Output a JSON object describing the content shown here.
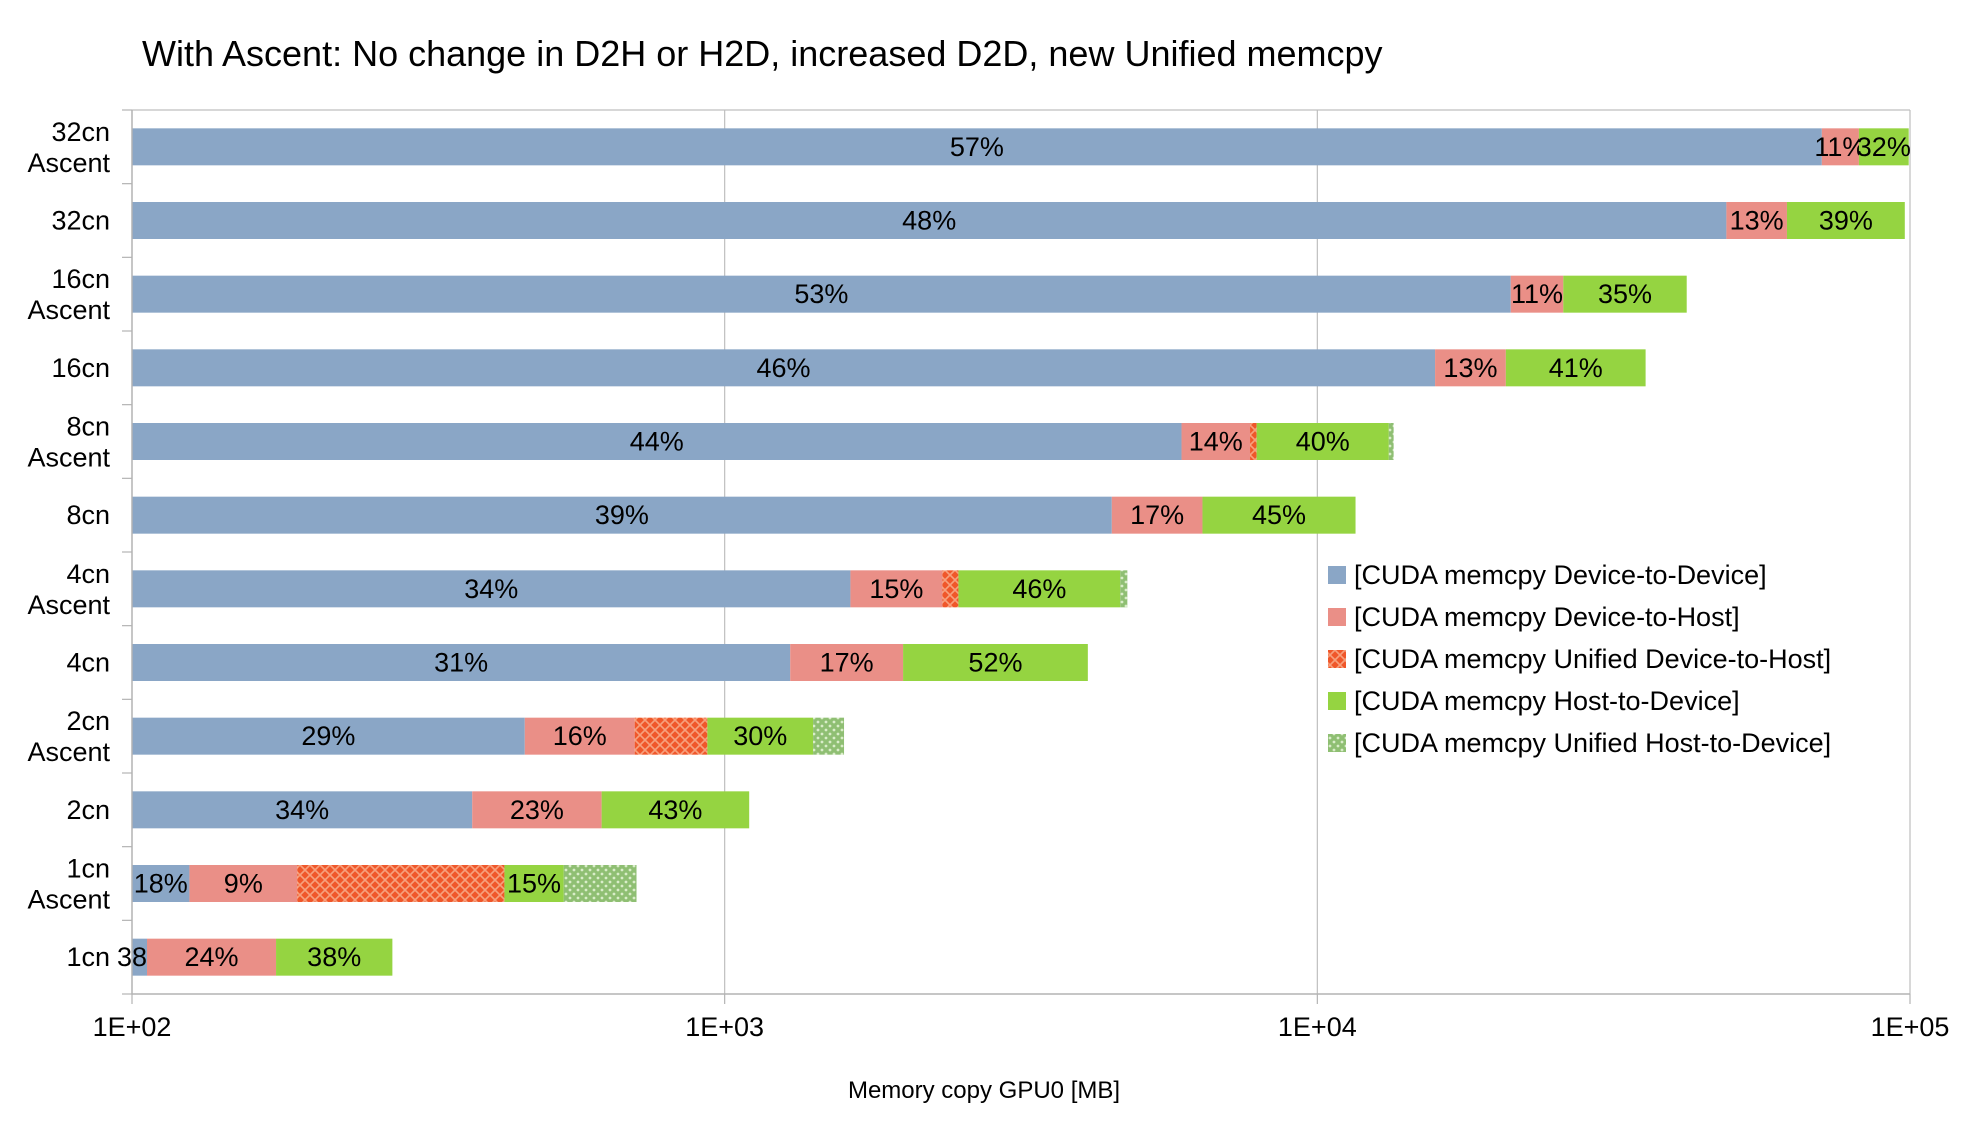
{
  "chart_data": {
    "type": "bar",
    "orientation": "horizontal",
    "stacked": true,
    "title": "With Ascent: No change in D2H or H2D, increased D2D, new Unified memcpy",
    "xlabel": "Memory copy GPU0  [MB]",
    "ylabel": "",
    "x_scale": "log",
    "xlim": [
      100,
      100000
    ],
    "x_ticks": [
      "1E+02",
      "1E+03",
      "1E+04",
      "1E+05"
    ],
    "grid": true,
    "legend_position": "right",
    "categories": [
      "32cn\nAscent",
      "32cn",
      "16cn\nAscent",
      "16cn",
      "8cn\nAscent",
      "8cn",
      "4cn\nAscent",
      "4cn",
      "2cn\nAscent",
      "2cn",
      "1cn\nAscent",
      "1cn"
    ],
    "series": [
      {
        "name": "[CUDA memcpy Device-to-Device]",
        "color": "#8aa6c6",
        "pattern": "solid",
        "bounds": [
          [
            100,
            71000
          ],
          [
            100,
            49000
          ],
          [
            100,
            21200
          ],
          [
            100,
            15800
          ],
          [
            100,
            5900
          ],
          [
            100,
            4500
          ],
          [
            100,
            1630
          ],
          [
            100,
            1290
          ],
          [
            100,
            460
          ],
          [
            100,
            375
          ],
          [
            100,
            125
          ],
          [
            100,
            106
          ]
        ],
        "labels": [
          "57%",
          "48%",
          "53%",
          "46%",
          "44%",
          "39%",
          "34%",
          "31%",
          "29%",
          "34%",
          "18%",
          "38%"
        ]
      },
      {
        "name": "[CUDA memcpy Device-to-Host]",
        "color": "#ea8f87",
        "pattern": "solid",
        "bounds": [
          [
            71000,
            82000
          ],
          [
            49000,
            62000
          ],
          [
            21200,
            26000
          ],
          [
            15800,
            20800
          ],
          [
            5900,
            7700
          ],
          [
            4500,
            6400
          ],
          [
            1630,
            2330
          ],
          [
            1290,
            2000
          ],
          [
            460,
            705
          ],
          [
            375,
            620
          ],
          [
            125,
            190
          ],
          [
            106,
            175
          ]
        ],
        "labels": [
          "11%",
          "13%",
          "11%",
          "13%",
          "14%",
          "17%",
          "15%",
          "17%",
          "16%",
          "23%",
          "9%",
          "24%"
        ]
      },
      {
        "name": "[CUDA memcpy Unified Device-to-Host]",
        "color": "#f0572a",
        "pattern": "hatch",
        "bounds": [
          [
            82000,
            82000
          ],
          [
            62000,
            62000
          ],
          [
            26000,
            26000
          ],
          [
            20800,
            20800
          ],
          [
            7700,
            7900
          ],
          [
            6400,
            6400
          ],
          [
            2330,
            2480
          ],
          [
            2000,
            2000
          ],
          [
            705,
            935
          ],
          [
            620,
            620
          ],
          [
            190,
            425
          ],
          [
            175,
            175
          ]
        ],
        "labels": [
          "",
          "",
          "",
          "",
          "",
          "",
          "",
          "",
          "",
          "",
          "",
          ""
        ]
      },
      {
        "name": "[CUDA memcpy Host-to-Device]",
        "color": "#95d441",
        "pattern": "solid",
        "bounds": [
          [
            82000,
            99500
          ],
          [
            62000,
            98000
          ],
          [
            26000,
            42000
          ],
          [
            20800,
            35800
          ],
          [
            7900,
            13200
          ],
          [
            6400,
            11600
          ],
          [
            2480,
            4650
          ],
          [
            2000,
            4100
          ],
          [
            935,
            1410
          ],
          [
            620,
            1100
          ],
          [
            425,
            535
          ],
          [
            175,
            275
          ]
        ],
        "labels": [
          "32%",
          "39%",
          "35%",
          "41%",
          "40%",
          "45%",
          "46%",
          "52%",
          "30%",
          "43%",
          "15%",
          "38%"
        ]
      },
      {
        "name": "[CUDA memcpy Unified Host-to-Device]",
        "color": "#8fbf73",
        "pattern": "dots",
        "bounds": [
          [
            99500,
            99500
          ],
          [
            98000,
            98000
          ],
          [
            42000,
            42000
          ],
          [
            35800,
            35800
          ],
          [
            13200,
            13450
          ],
          [
            11600,
            11600
          ],
          [
            4650,
            4780
          ],
          [
            4100,
            4100
          ],
          [
            1410,
            1590
          ],
          [
            1100,
            1100
          ],
          [
            535,
            710
          ],
          [
            275,
            275
          ]
        ],
        "labels": [
          "",
          "",
          "",
          "",
          "",
          "",
          "",
          "",
          "",
          "",
          "",
          ""
        ]
      }
    ]
  }
}
